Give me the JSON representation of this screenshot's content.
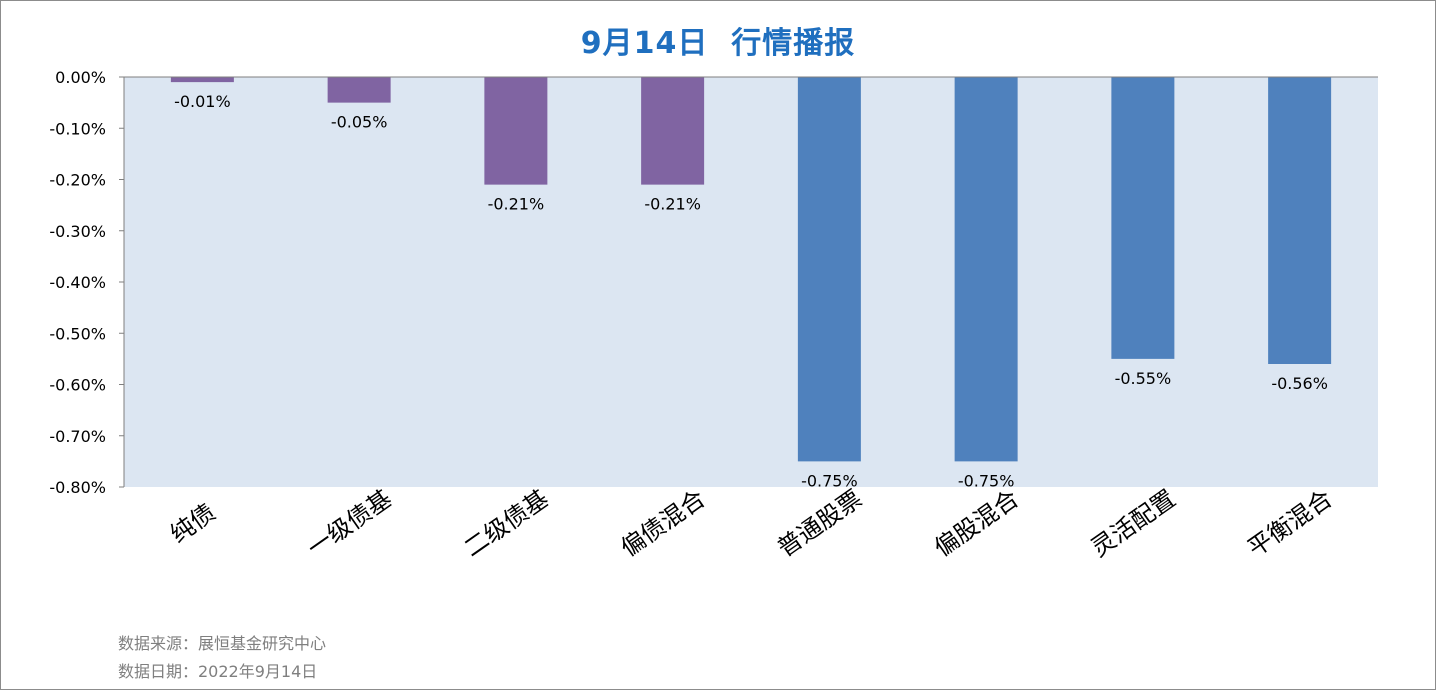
{
  "chart_data": {
    "type": "bar",
    "title": "9月14日  行情播报",
    "categories": [
      "纯债",
      "一级债基",
      "二级债基",
      "偏债混合",
      "普通股票",
      "偏股混合",
      "灵活配置",
      "平衡混合"
    ],
    "values": [
      -0.01,
      -0.05,
      -0.21,
      -0.21,
      -0.75,
      -0.75,
      -0.55,
      -0.56
    ],
    "data_labels": [
      "-0.01%",
      "-0.05%",
      "-0.21%",
      "-0.21%",
      "-0.75%",
      "-0.75%",
      "-0.55%",
      "-0.56%"
    ],
    "bar_colors": [
      "#8064a2",
      "#8064a2",
      "#8064a2",
      "#8064a2",
      "#4f81bd",
      "#4f81bd",
      "#4f81bd",
      "#4f81bd"
    ],
    "ylim": [
      -0.8,
      0.0
    ],
    "yticks": [
      0.0,
      -0.1,
      -0.2,
      -0.3,
      -0.4,
      -0.5,
      -0.6,
      -0.7,
      -0.8
    ],
    "ytick_labels": [
      "0.00%",
      "-0.10%",
      "-0.20%",
      "-0.30%",
      "-0.40%",
      "-0.50%",
      "-0.60%",
      "-0.70%",
      "-0.80%"
    ],
    "xlabel": "",
    "ylabel": "",
    "plot_background": "#dce6f2",
    "grid": false
  },
  "footer": {
    "source": "数据来源：展恒基金研究中心",
    "date": "数据日期：2022年9月14日"
  },
  "colors": {
    "title": "#1f6fbf",
    "footer_text": "#7f7f7f"
  }
}
